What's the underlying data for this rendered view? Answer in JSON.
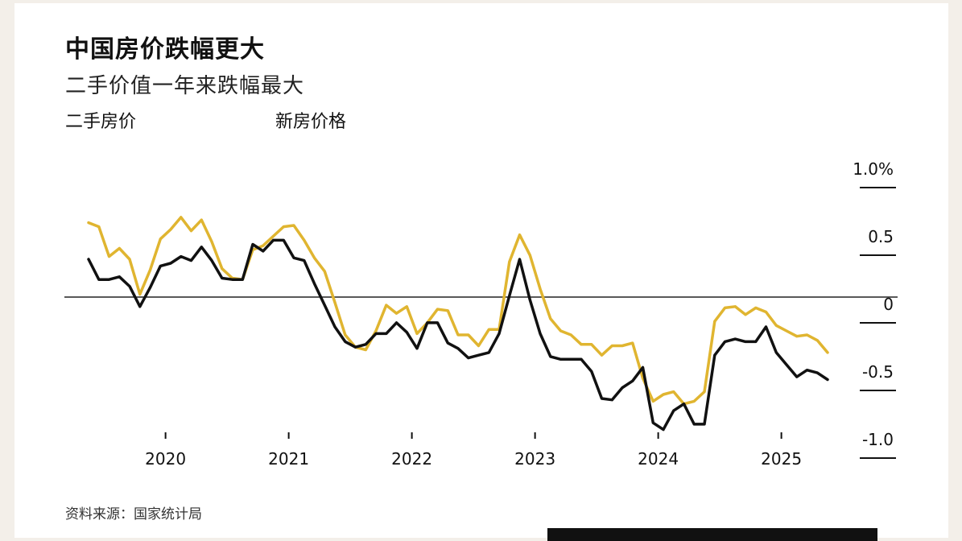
{
  "title": "中国房价跌幅更大",
  "subtitle": "二手价值一年来跌幅最大",
  "legend": [
    "二手房价",
    "新房价格"
  ],
  "source": "资料来源：国家统计局",
  "colors": {
    "secondhand": "#111111",
    "newhome": "#e0b530",
    "zero_line": "#222222"
  },
  "chart_data": {
    "type": "line",
    "title": "中国房价跌幅更大",
    "subtitle": "二手价值一年来跌幅最大",
    "x_ticks": [
      "2020",
      "2021",
      "2022",
      "2023",
      "2024",
      "2025"
    ],
    "y_ticks": [
      "1.0%",
      "0.5",
      "0",
      "-0.5",
      "-1.0"
    ],
    "y_tick_values": [
      1.0,
      0.5,
      0,
      -0.5,
      -1.0
    ],
    "ylim": [
      -1.1,
      1.1
    ],
    "x_start": "2019-11",
    "legend_position": "top-left",
    "series": [
      {
        "name": "二手房价",
        "color": "#111111",
        "values": [
          0.28,
          0.13,
          0.13,
          0.15,
          0.08,
          -0.07,
          0.07,
          0.23,
          0.25,
          0.3,
          0.27,
          0.37,
          0.27,
          0.14,
          0.13,
          0.13,
          0.39,
          0.34,
          0.42,
          0.42,
          0.29,
          0.27,
          0.1,
          -0.06,
          -0.22,
          -0.33,
          -0.37,
          -0.35,
          -0.27,
          -0.27,
          -0.19,
          -0.26,
          -0.38,
          -0.19,
          -0.19,
          -0.34,
          -0.38,
          -0.45,
          -0.43,
          -0.41,
          -0.27,
          0.01,
          0.28,
          -0.02,
          -0.27,
          -0.44,
          -0.46,
          -0.46,
          -0.46,
          -0.55,
          -0.75,
          -0.76,
          -0.67,
          -0.62,
          -0.52,
          -0.93,
          -0.98,
          -0.84,
          -0.79,
          -0.94,
          -0.94,
          -0.43,
          -0.33,
          -0.31,
          -0.33,
          -0.33,
          -0.22,
          -0.41,
          -0.5,
          -0.59,
          -0.54,
          -0.56,
          -0.61
        ]
      },
      {
        "name": "新房价格",
        "color": "#e0b530",
        "values": [
          0.55,
          0.52,
          0.3,
          0.36,
          0.28,
          0.02,
          0.2,
          0.43,
          0.5,
          0.59,
          0.49,
          0.57,
          0.41,
          0.21,
          0.14,
          0.13,
          0.35,
          0.38,
          0.45,
          0.52,
          0.53,
          0.42,
          0.29,
          0.19,
          -0.04,
          -0.28,
          -0.37,
          -0.39,
          -0.25,
          -0.06,
          -0.12,
          -0.07,
          -0.27,
          -0.19,
          -0.09,
          -0.1,
          -0.28,
          -0.28,
          -0.36,
          -0.24,
          -0.24,
          0.26,
          0.46,
          0.31,
          0.06,
          -0.16,
          -0.25,
          -0.28,
          -0.35,
          -0.35,
          -0.43,
          -0.36,
          -0.36,
          -0.34,
          -0.6,
          -0.77,
          -0.72,
          -0.7,
          -0.79,
          -0.77,
          -0.7,
          -0.18,
          -0.08,
          -0.07,
          -0.13,
          -0.08,
          -0.11,
          -0.21,
          -0.25,
          -0.29,
          -0.28,
          -0.32,
          -0.41
        ]
      }
    ]
  }
}
